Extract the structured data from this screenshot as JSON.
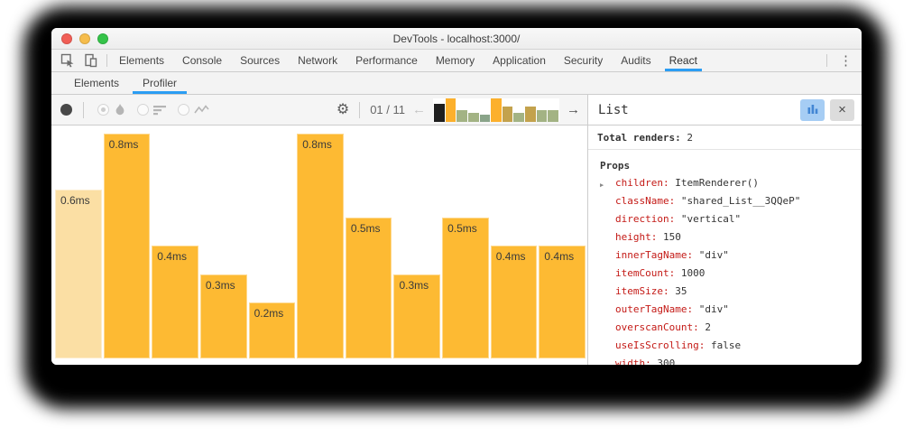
{
  "window": {
    "title": "DevTools - localhost:3000/"
  },
  "main_tabs": {
    "items": [
      "Elements",
      "Console",
      "Sources",
      "Network",
      "Performance",
      "Memory",
      "Application",
      "Security",
      "Audits",
      "React"
    ],
    "active": "React"
  },
  "sub_tabs": {
    "items": [
      "Elements",
      "Profiler"
    ],
    "active": "Profiler"
  },
  "toolbar": {
    "snapshot_counter": "01 / 11",
    "view_options": [
      "flamegraph",
      "ranked",
      "interactions"
    ],
    "selected_view": "flamegraph",
    "snapshots": [
      {
        "h": 0.75,
        "color": "#1f1f1f"
      },
      {
        "h": 1.0,
        "color": "#fcb02c"
      },
      {
        "h": 0.5,
        "color": "#a3b384"
      },
      {
        "h": 0.38,
        "color": "#a3b384"
      },
      {
        "h": 0.27,
        "color": "#8aa489"
      },
      {
        "h": 1.0,
        "color": "#fcb02c"
      },
      {
        "h": 0.62,
        "color": "#c3a24d"
      },
      {
        "h": 0.38,
        "color": "#a3b384"
      },
      {
        "h": 0.62,
        "color": "#c3a24d"
      },
      {
        "h": 0.5,
        "color": "#a3b384"
      },
      {
        "h": 0.5,
        "color": "#a3b384"
      }
    ]
  },
  "chart_data": {
    "type": "bar",
    "categories": [
      "1",
      "2",
      "3",
      "4",
      "5",
      "6",
      "7",
      "8",
      "9",
      "10",
      "11"
    ],
    "values": [
      0.6,
      0.8,
      0.4,
      0.3,
      0.2,
      0.8,
      0.5,
      0.3,
      0.5,
      0.4,
      0.4
    ],
    "labels": [
      "0.6ms",
      "0.8ms",
      "0.4ms",
      "0.3ms",
      "0.2ms",
      "0.8ms",
      "0.5ms",
      "0.3ms",
      "0.5ms",
      "0.4ms",
      "0.4ms"
    ],
    "unit": "ms",
    "ymax": 0.8,
    "highlighted_index": 0,
    "xlabel": "",
    "ylabel": "",
    "legend": "none",
    "grid": false
  },
  "panel": {
    "title": "List",
    "total_renders_label": "Total renders:",
    "total_renders_value": "2",
    "props_label": "Props",
    "props": [
      {
        "key": "children",
        "value": "ItemRenderer()",
        "expandable": true
      },
      {
        "key": "className",
        "value": "\"shared_List__3QQeP\""
      },
      {
        "key": "direction",
        "value": "\"vertical\""
      },
      {
        "key": "height",
        "value": "150"
      },
      {
        "key": "innerTagName",
        "value": "\"div\""
      },
      {
        "key": "itemCount",
        "value": "1000"
      },
      {
        "key": "itemSize",
        "value": "35"
      },
      {
        "key": "outerTagName",
        "value": "\"div\""
      },
      {
        "key": "overscanCount",
        "value": "2"
      },
      {
        "key": "useIsScrolling",
        "value": "false"
      },
      {
        "key": "width",
        "value": "300"
      }
    ]
  },
  "icons": {
    "gear": "⚙",
    "prev_arrow": "←",
    "next_arrow": "→",
    "more_vertical": "⋮",
    "close": "×",
    "caret_collapsed": "▶"
  },
  "colors": {
    "accent": "#2b9df3",
    "bar_default": "#fdba33",
    "bar_highlight": "#fbdfa4",
    "prop_key": "#c41a16",
    "traffic_red": "#f15e56",
    "traffic_yellow": "#f6bd4c",
    "traffic_green": "#35c349",
    "chart_btn_bg": "#a6cdf4",
    "chart_btn_icon": "#4286d4"
  }
}
